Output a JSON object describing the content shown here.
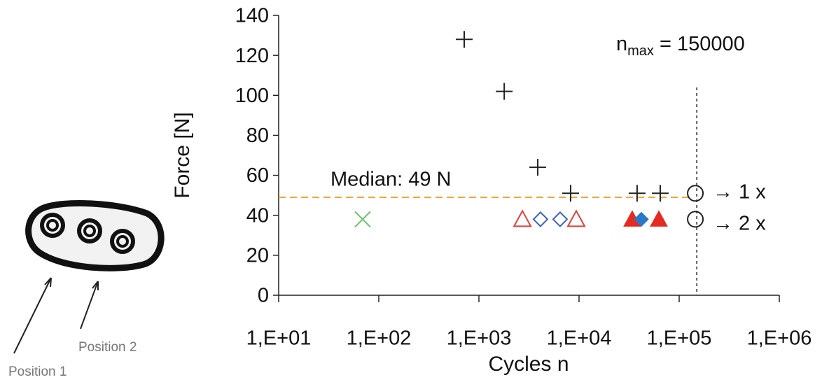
{
  "chart_data": {
    "type": "scatter",
    "x_label": "Cycles n",
    "y_label": "Force [N]",
    "xlim": [
      10,
      1000000
    ],
    "log_x": true,
    "xticks": [
      {
        "value": 10,
        "label": "1,E+01"
      },
      {
        "value": 100,
        "label": "1,E+02"
      },
      {
        "value": 1000,
        "label": "1,E+03"
      },
      {
        "value": 10000,
        "label": "1,E+04"
      },
      {
        "value": 100000,
        "label": "1,E+05"
      },
      {
        "value": 1000000,
        "label": "1,E+06"
      }
    ],
    "ylim": [
      0,
      140
    ],
    "yticks": [
      0,
      20,
      40,
      60,
      80,
      100,
      120,
      140
    ],
    "series": [
      {
        "marker": "plus",
        "color": "#222222",
        "x": [
          713,
          1790,
          3870,
          8240,
          38000,
          64700
        ],
        "values": [
          128,
          102,
          64,
          51,
          51,
          51
        ]
      },
      {
        "marker": "x",
        "color": "#6cc06c",
        "x": [
          69
        ],
        "values": [
          38
        ]
      },
      {
        "marker": "triangle-open",
        "color": "#e0403a",
        "x": [
          2720,
          9380
        ],
        "values": [
          38,
          38
        ]
      },
      {
        "marker": "diamond-open",
        "color": "#3a62b8",
        "x": [
          4120,
          6470
        ],
        "values": [
          38,
          38
        ]
      },
      {
        "marker": "triangle-filled",
        "color": "#e52a22",
        "x": [
          34000,
          62700
        ],
        "values": [
          38,
          38
        ]
      },
      {
        "marker": "diamond-filled",
        "color": "#2a78c8",
        "x": [
          41900
        ],
        "values": [
          38
        ]
      },
      {
        "marker": "circle-open",
        "color": "#222222",
        "x": [
          145000,
          145000
        ],
        "values": [
          51,
          38
        ]
      }
    ],
    "hlines": [
      {
        "value": 49,
        "color": "#f0a830",
        "label": "Median: 49 N"
      }
    ],
    "vlines": [
      {
        "value": 150000,
        "color": "#222222",
        "label": {
          "base": "n",
          "sub": "max",
          "rest": " = 150000"
        }
      }
    ],
    "annotations": [
      "→ 1 x",
      "→ 2 x"
    ]
  },
  "figure_labels": [
    "Position 1",
    "Position 2"
  ]
}
